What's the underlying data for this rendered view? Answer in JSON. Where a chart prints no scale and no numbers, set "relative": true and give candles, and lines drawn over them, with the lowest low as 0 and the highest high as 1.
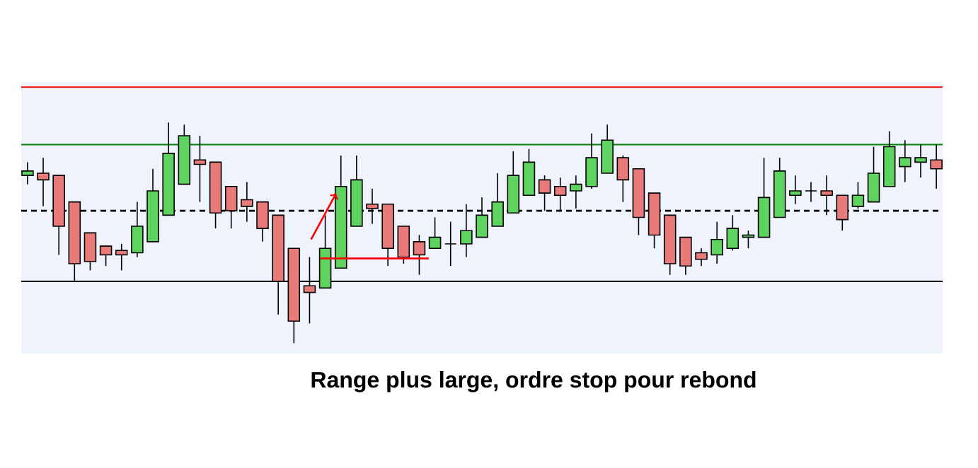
{
  "chart_data": {
    "type": "candlestick",
    "relative": true,
    "title": "Range plus large, ordre stop pour rebond",
    "tick_labels": false,
    "categories": [
      null,
      null,
      null,
      null,
      null,
      null,
      null,
      null,
      null,
      null,
      null,
      null,
      null,
      null,
      null,
      null,
      null,
      null,
      null,
      null,
      null,
      null,
      null,
      null,
      null,
      null,
      null,
      null,
      null,
      null,
      null,
      null,
      null,
      null,
      null,
      null,
      null,
      null,
      null,
      null,
      null,
      null,
      null,
      null,
      null,
      null,
      null,
      null,
      null,
      null,
      null,
      null,
      null,
      null,
      null,
      null,
      null,
      null,
      null
    ],
    "ohlc": [
      [
        0.76,
        0.82,
        0.72,
        0.78
      ],
      [
        0.77,
        0.84,
        0.62,
        0.74
      ],
      [
        0.76,
        0.76,
        0.4,
        0.53
      ],
      [
        0.64,
        0.64,
        0.28,
        0.36
      ],
      [
        0.5,
        0.5,
        0.33,
        0.37
      ],
      [
        0.44,
        0.44,
        0.35,
        0.4
      ],
      [
        0.42,
        0.45,
        0.33,
        0.4
      ],
      [
        0.41,
        0.64,
        0.39,
        0.53
      ],
      [
        0.46,
        0.79,
        0.46,
        0.69
      ],
      [
        0.58,
        1.0,
        0.58,
        0.86
      ],
      [
        0.72,
        0.99,
        0.72,
        0.94
      ],
      [
        0.83,
        0.94,
        0.64,
        0.81
      ],
      [
        0.82,
        0.82,
        0.52,
        0.59
      ],
      [
        0.71,
        0.71,
        0.52,
        0.6
      ],
      [
        0.65,
        0.73,
        0.55,
        0.62
      ],
      [
        0.64,
        0.64,
        0.46,
        0.52
      ],
      [
        0.58,
        0.58,
        0.13,
        0.28
      ],
      [
        0.43,
        0.43,
        0.0,
        0.1
      ],
      [
        0.26,
        0.39,
        0.09,
        0.23
      ],
      [
        0.25,
        0.58,
        0.25,
        0.43
      ],
      [
        0.34,
        0.85,
        0.34,
        0.71
      ],
      [
        0.53,
        0.85,
        0.53,
        0.74
      ],
      [
        0.63,
        0.7,
        0.54,
        0.61
      ],
      [
        0.63,
        0.63,
        0.35,
        0.43
      ],
      [
        0.53,
        0.53,
        0.36,
        0.39
      ],
      [
        0.46,
        0.49,
        0.31,
        0.4
      ],
      [
        0.43,
        0.57,
        0.43,
        0.48
      ],
      [
        0.45,
        0.55,
        0.35,
        0.45
      ],
      [
        0.45,
        0.63,
        0.39,
        0.51
      ],
      [
        0.48,
        0.66,
        0.48,
        0.58
      ],
      [
        0.53,
        0.77,
        0.53,
        0.64
      ],
      [
        0.59,
        0.87,
        0.59,
        0.76
      ],
      [
        0.67,
        0.88,
        0.67,
        0.82
      ],
      [
        0.74,
        0.76,
        0.6,
        0.68
      ],
      [
        0.71,
        0.75,
        0.6,
        0.67
      ],
      [
        0.69,
        0.76,
        0.61,
        0.72
      ],
      [
        0.71,
        0.95,
        0.7,
        0.84
      ],
      [
        0.77,
        0.99,
        0.77,
        0.92
      ],
      [
        0.84,
        0.85,
        0.64,
        0.74
      ],
      [
        0.79,
        0.79,
        0.49,
        0.57
      ],
      [
        0.68,
        0.68,
        0.43,
        0.49
      ],
      [
        0.58,
        0.58,
        0.31,
        0.36
      ],
      [
        0.48,
        0.48,
        0.31,
        0.35
      ],
      [
        0.41,
        0.43,
        0.35,
        0.38
      ],
      [
        0.4,
        0.55,
        0.36,
        0.47
      ],
      [
        0.43,
        0.58,
        0.42,
        0.52
      ],
      [
        0.48,
        0.51,
        0.43,
        0.49
      ],
      [
        0.48,
        0.84,
        0.48,
        0.66
      ],
      [
        0.57,
        0.84,
        0.57,
        0.78
      ],
      [
        0.67,
        0.76,
        0.63,
        0.69
      ],
      [
        0.69,
        0.73,
        0.64,
        0.69
      ],
      [
        0.69,
        0.76,
        0.58,
        0.67
      ],
      [
        0.67,
        0.67,
        0.51,
        0.56
      ],
      [
        0.62,
        0.73,
        0.61,
        0.67
      ],
      [
        0.64,
        0.89,
        0.64,
        0.77
      ],
      [
        0.71,
        0.96,
        0.71,
        0.89
      ],
      [
        0.8,
        0.92,
        0.73,
        0.84
      ],
      [
        0.82,
        0.9,
        0.75,
        0.84
      ],
      [
        0.83,
        0.9,
        0.7,
        0.79
      ]
    ],
    "colors": [
      "#5fd35f",
      "#e87a7a",
      "#e87a7a",
      "#e87a7a",
      "#e87a7a",
      "#e87a7a",
      "#e87a7a",
      "#5fd35f",
      "#5fd35f",
      "#5fd35f",
      "#5fd35f",
      "#e87a7a",
      "#e87a7a",
      "#e87a7a",
      "#e87a7a",
      "#e87a7a",
      "#e87a7a",
      "#e87a7a",
      "#e87a7a",
      "#5fd35f",
      "#5fd35f",
      "#5fd35f",
      "#e87a7a",
      "#e87a7a",
      "#e87a7a",
      "#e87a7a",
      "#5fd35f",
      "#000000",
      "#5fd35f",
      "#5fd35f",
      "#5fd35f",
      "#5fd35f",
      "#5fd35f",
      "#e87a7a",
      "#e87a7a",
      "#5fd35f",
      "#5fd35f",
      "#5fd35f",
      "#e87a7a",
      "#e87a7a",
      "#e87a7a",
      "#e87a7a",
      "#e87a7a",
      "#e87a7a",
      "#5fd35f",
      "#5fd35f",
      "#5fd35f",
      "#5fd35f",
      "#5fd35f",
      "#5fd35f",
      "#000000",
      "#e87a7a",
      "#e87a7a",
      "#5fd35f",
      "#5fd35f",
      "#5fd35f",
      "#5fd35f",
      "#5fd35f",
      "#e87a7a"
    ],
    "ref_lines": [
      {
        "axis": "y",
        "value": 1.16,
        "color": "#ff0000",
        "line_style": "solid"
      },
      {
        "axis": "y",
        "value": 0.9,
        "color": "#008000",
        "line_style": "solid"
      },
      {
        "axis": "y",
        "value": 0.6,
        "color": "#000000",
        "line_style": "dashed"
      },
      {
        "axis": "y",
        "value": 0.28,
        "color": "#000000",
        "line_style": "solid"
      }
    ]
  }
}
